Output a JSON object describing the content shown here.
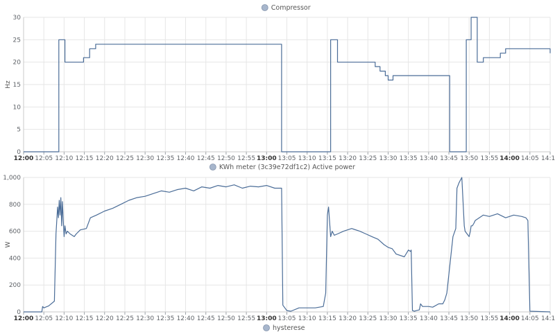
{
  "charts": {
    "accent": "#4a6c97",
    "legend_fill": "#a7b6cc",
    "grid_color": "#e6e6e6",
    "x_ticks": [
      "12:00",
      "12:05",
      "12:10",
      "12:15",
      "12:20",
      "12:25",
      "12:30",
      "12:35",
      "12:40",
      "12:45",
      "12:50",
      "12:55",
      "13:00",
      "13:05",
      "13:10",
      "13:15",
      "13:20",
      "13:25",
      "13:30",
      "13:35",
      "13:40",
      "13:45",
      "13:50",
      "13:55",
      "14:00",
      "14:05",
      "14:10"
    ],
    "bold_ticks": [
      "12:00",
      "13:00",
      "14:00"
    ],
    "footer_legend": "hysterese"
  },
  "chart_data": [
    {
      "type": "line",
      "title": "Compressor",
      "legend": "Compressor",
      "ylabel": "Hz",
      "x_unit": "minutes after 12:00",
      "xlim": [
        0,
        130
      ],
      "ylim": [
        0,
        30
      ],
      "yticks": [
        0,
        5,
        10,
        15,
        20,
        25,
        30
      ],
      "step": true,
      "series": [
        {
          "name": "Compressor",
          "x": [
            0,
            8.7,
            10.2,
            14.8,
            16.3,
            17.8,
            63.7,
            74.9,
            75.8,
            77.5,
            85.8,
            86.8,
            88.0,
            89.3,
            90.0,
            91.2,
            97.7,
            105.2,
            107.0,
            109.3,
            110.5,
            112.0,
            113.5,
            117.7,
            119.0,
            121.5,
            130
          ],
          "values": [
            0,
            25,
            20,
            21,
            23,
            24,
            0,
            0,
            25,
            20,
            20,
            19,
            18,
            17,
            16,
            17,
            17,
            0,
            0,
            25,
            30,
            20,
            21,
            22,
            23,
            23,
            22
          ]
        }
      ]
    },
    {
      "type": "line",
      "title": "KWh meter (3c39e72df1c2) Active power",
      "legend": "KWh meter (3c39e72df1c2) Active power",
      "ylabel": "W",
      "x_unit": "minutes after 12:00",
      "xlim": [
        0,
        130
      ],
      "ylim": [
        0,
        1000
      ],
      "yticks": [
        0,
        200,
        400,
        600,
        800,
        1000
      ],
      "series": [
        {
          "name": "Active power",
          "x": [
            0,
            4.5,
            4.7,
            5.0,
            6.2,
            7.6,
            8.0,
            8.4,
            8.6,
            8.8,
            9.0,
            9.2,
            9.4,
            9.6,
            9.8,
            10.0,
            10.2,
            10.5,
            10.8,
            11.5,
            12.5,
            13.0,
            14.0,
            15.5,
            16.5,
            18.0,
            20.0,
            22.0,
            24.0,
            26.0,
            28.0,
            30.0,
            32.0,
            34.0,
            36.0,
            38.0,
            40.0,
            42.0,
            44.0,
            46.0,
            48.0,
            50.0,
            52.0,
            54.0,
            56.0,
            58.0,
            60.0,
            62.0,
            63.7,
            64.0,
            65.0,
            66.0,
            68.0,
            70.0,
            72.0,
            74.0,
            74.6,
            75.0,
            75.3,
            75.8,
            76.2,
            76.7,
            77.5,
            79.0,
            81.0,
            83.0,
            84.5,
            86.0,
            87.5,
            89.0,
            90.0,
            91.0,
            92.0,
            94.0,
            95.0,
            95.5,
            95.7,
            96.0,
            96.5,
            97.0,
            97.7,
            98.0,
            98.5,
            99.0,
            100.0,
            101.0,
            102.5,
            103.5,
            104.0,
            104.5,
            106.0,
            106.7,
            107.0,
            107.5,
            108.2,
            108.8,
            109.0,
            109.5,
            110.0,
            110.3,
            110.5,
            110.8,
            111.2,
            111.5,
            112.5,
            113.5,
            115.0,
            117.0,
            119.0,
            121.0,
            123.0,
            124.0,
            124.5,
            125.0,
            130
          ],
          "values": [
            0,
            0,
            40,
            30,
            45,
            80,
            580,
            780,
            700,
            830,
            720,
            850,
            640,
            820,
            680,
            560,
            640,
            580,
            600,
            580,
            560,
            580,
            610,
            620,
            700,
            720,
            750,
            770,
            800,
            830,
            850,
            860,
            880,
            900,
            890,
            910,
            920,
            900,
            930,
            920,
            940,
            930,
            945,
            920,
            935,
            930,
            940,
            920,
            920,
            50,
            10,
            5,
            30,
            30,
            30,
            40,
            140,
            720,
            780,
            560,
            600,
            570,
            580,
            600,
            620,
            600,
            580,
            560,
            540,
            500,
            480,
            470,
            430,
            410,
            460,
            450,
            460,
            10,
            5,
            10,
            15,
            60,
            40,
            40,
            40,
            35,
            60,
            60,
            90,
            140,
            560,
            620,
            920,
            960,
            1000,
            640,
            600,
            580,
            560,
            600,
            640,
            640,
            660,
            680,
            700,
            720,
            710,
            730,
            700,
            720,
            710,
            700,
            680,
            5,
            0
          ]
        }
      ]
    }
  ]
}
